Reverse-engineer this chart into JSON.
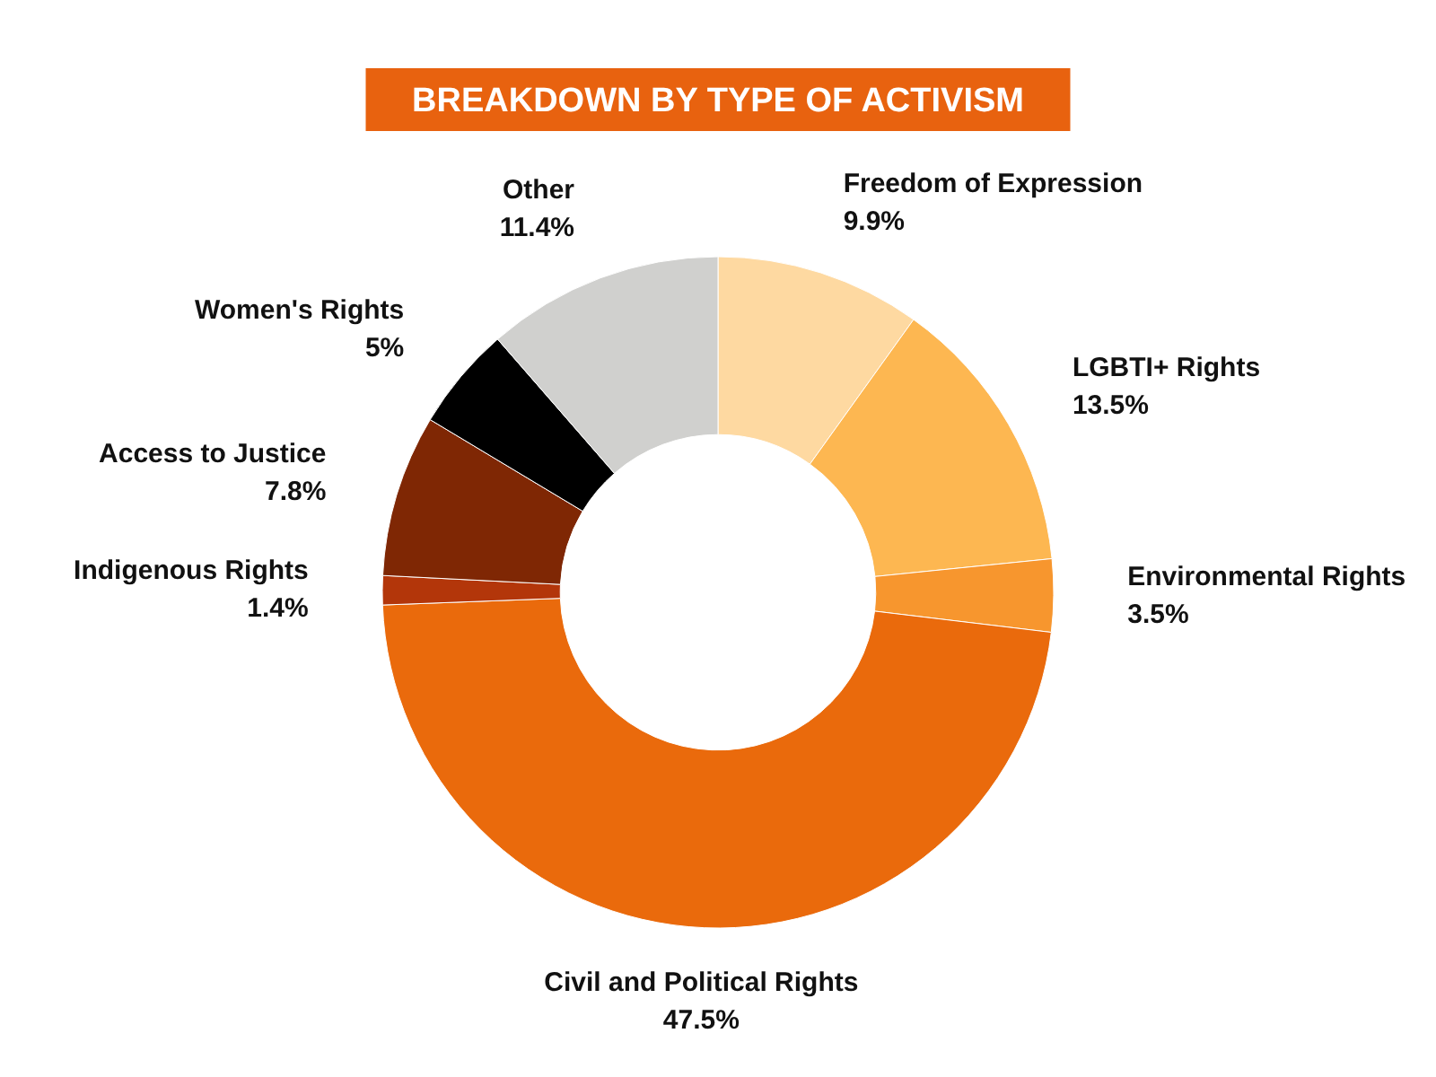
{
  "chart_data": {
    "type": "donut",
    "title": "BREAKDOWN BY TYPE OF ACTIVISM",
    "categories": [
      "Freedom of Expression",
      "LGBTI+ Rights",
      "Environmental Rights",
      "Civil and Political Rights",
      "Indigenous Rights",
      "Access to Justice",
      "Women's Rights",
      "Other"
    ],
    "values": [
      9.9,
      13.5,
      3.5,
      47.5,
      1.4,
      7.8,
      5,
      11.4
    ],
    "value_labels": [
      "9.9%",
      "13.5%",
      "3.5%",
      "47.5%",
      "1.4%",
      "7.8%",
      "5%",
      "11.4%"
    ],
    "colors": [
      "#fed9a1",
      "#fdb751",
      "#f7962e",
      "#ea6a0c",
      "#b3360a",
      "#7f2704",
      "#000000",
      "#d0d0ce"
    ]
  }
}
